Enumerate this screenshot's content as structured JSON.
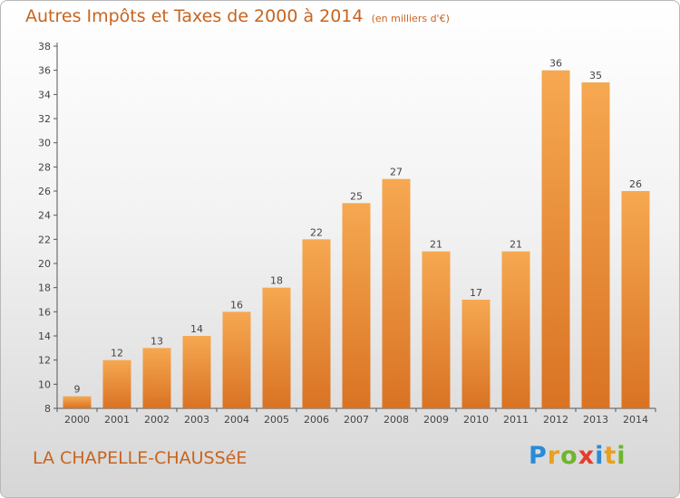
{
  "header": {
    "title": "Autres Impôts et Taxes de 2000 à 2014",
    "unit": "(en milliers d'€)"
  },
  "footer": {
    "commune": "LA CHAPELLE-CHAUSSéE",
    "logo_letters": [
      "P",
      "r",
      "o",
      "x",
      "i",
      "t",
      "i"
    ],
    "logo_colors": [
      "#2b8ad8",
      "#e8a020",
      "#6fb52c",
      "#e63c2d",
      "#2b8ad8",
      "#e8a020",
      "#6fb52c"
    ]
  },
  "colors": {
    "accent": "#c8641e",
    "bar_light": "#f6a851",
    "bar_dark": "#d97324"
  },
  "chart_data": {
    "type": "bar",
    "title": "Autres Impôts et Taxes de 2000 à 2014",
    "subtitle": "(en milliers d'€)",
    "xlabel": "",
    "ylabel": "",
    "categories": [
      "2000",
      "2001",
      "2002",
      "2003",
      "2004",
      "2005",
      "2006",
      "2007",
      "2008",
      "2009",
      "2010",
      "2011",
      "2012",
      "2013",
      "2014"
    ],
    "values": [
      9,
      12,
      13,
      14,
      16,
      18,
      22,
      25,
      27,
      21,
      17,
      21,
      36,
      35,
      26
    ],
    "data_labels": [
      "9",
      "12",
      "13",
      "14",
      "16",
      "18",
      "22",
      "25",
      "27",
      "21",
      "17",
      "21",
      "36",
      "35",
      "26"
    ],
    "ylim": [
      8,
      38
    ],
    "yticks": [
      8,
      10,
      12,
      14,
      16,
      18,
      20,
      22,
      24,
      26,
      28,
      30,
      32,
      34,
      36,
      38
    ],
    "grid": false,
    "legend": "none"
  }
}
